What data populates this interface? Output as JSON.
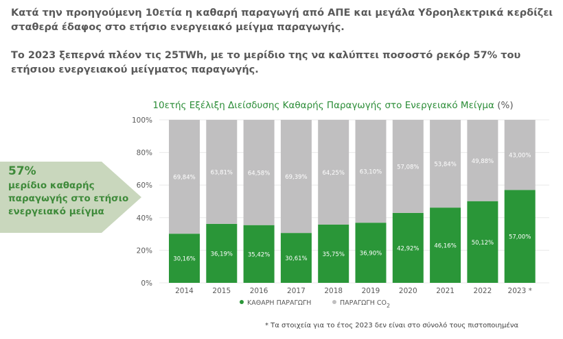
{
  "headline": {
    "paragraph1": "Κατά την προηγούμενη 10ετία η καθαρή παραγωγή από ΑΠΕ και μεγάλα Υδροηλεκτρικά κερδίζει σταθερά έδαφος στο ετήσιο ενεργειακό μείγμα παραγωγής.",
    "paragraph2": "Το 2023 ξεπερνά πλέον τις 25TWh, με το μερίδιο της να καλύπτει ποσοστό ρεκόρ 57% του ετήσιου ενεργειακού μείγματος παραγωγής."
  },
  "callout": {
    "percent": "57%",
    "text": "μερίδιο καθαρής παραγωγής στο ετήσιο ενεργειακό μείγμα"
  },
  "footnote": "*  Τα στοιχεία για το έτος 2023 δεν είναι στο σύνολό τους πιστοποιημένα",
  "chart_data": {
    "type": "bar",
    "stacked": true,
    "title": "10ετής Εξέλιξη Διείσδυσης Καθαρής Παραγωγής στο Ενεργειακό Μείγμα",
    "title_unit": "(%)",
    "categories": [
      "2014",
      "2015",
      "2016",
      "2017",
      "2018",
      "2019",
      "2020",
      "2021",
      "2022",
      "2023 *"
    ],
    "series": [
      {
        "name": "ΚΑΘΑΡΗ ΠΑΡΑΓΩΓΗ",
        "color": "#2a9638",
        "values": [
          30.16,
          36.19,
          35.42,
          30.61,
          35.75,
          36.9,
          42.92,
          46.16,
          50.12,
          57.0
        ],
        "labels": [
          "30,16%",
          "36,19%",
          "35,42%",
          "30,61%",
          "35,75%",
          "36,90%",
          "42,92%",
          "46,16%",
          "50,12%",
          "57,00%"
        ]
      },
      {
        "name": "ΠΑΡΑΓΩΓΗ CO2",
        "color": "#c0bfc0",
        "values": [
          69.84,
          63.81,
          64.58,
          69.39,
          64.25,
          63.1,
          57.08,
          53.84,
          49.88,
          43.0
        ],
        "labels": [
          "69,84%",
          "63,81%",
          "64,58%",
          "69,39%",
          "64,25%",
          "63,10%",
          "57,08%",
          "53,84%",
          "49,88%",
          "43,00%"
        ]
      }
    ],
    "y_ticks": [
      "0%",
      "20%",
      "40%",
      "60%",
      "80%",
      "100%"
    ],
    "ylim": [
      0,
      100
    ],
    "grid": true,
    "legend_position": "bottom"
  }
}
